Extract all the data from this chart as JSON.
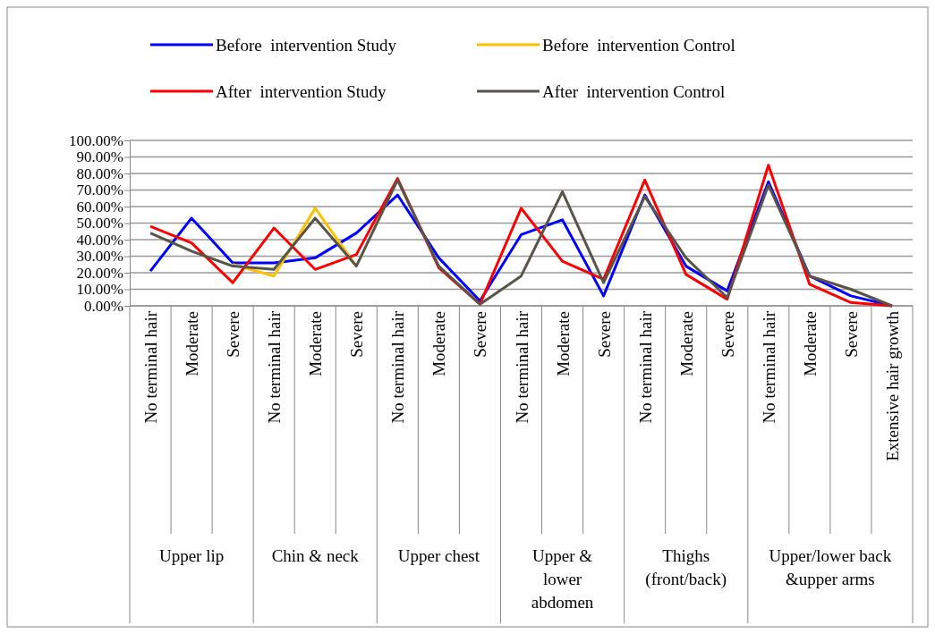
{
  "chart_data": {
    "type": "line",
    "categories": [
      "No terminal hair",
      "Moderate",
      "Severe",
      "No terminal hair",
      "Moderate",
      "Severe",
      "No terminal hair",
      "Moderate",
      "Severe",
      "No terminal hair",
      "Moderate",
      "Severe",
      "No terminal hair",
      "Moderate",
      "Severe",
      "No terminal hair",
      "Moderate",
      "Severe",
      "Extensive hair growth"
    ],
    "series": [
      {
        "name": "Before  intervention Study",
        "color": "#0000ff",
        "values": [
          21,
          53,
          26,
          26,
          29,
          44,
          67,
          29,
          3,
          43,
          52,
          6,
          67,
          24,
          9,
          75,
          18,
          6,
          0
        ]
      },
      {
        "name": "Before  intervention Control",
        "color": "#ffc000",
        "values": [
          null,
          null,
          25,
          18,
          59,
          24,
          null,
          null,
          null,
          null,
          null,
          null,
          null,
          null,
          null,
          null,
          null,
          null,
          null
        ]
      },
      {
        "name": "After  intervention Study",
        "color": "#ff0000",
        "values": [
          48,
          38,
          14,
          47,
          22,
          31,
          77,
          23,
          1,
          59,
          27,
          16,
          76,
          19,
          4,
          85,
          13,
          2,
          0
        ]
      },
      {
        "name": "After  intervention Control",
        "color": "#595448",
        "values": [
          44,
          33,
          24,
          22,
          53,
          24,
          76,
          24,
          1,
          18,
          69,
          14,
          66,
          29,
          5,
          73,
          18,
          10,
          0
        ]
      }
    ],
    "ylim": [
      0,
      100
    ],
    "yticks": [
      {
        "value": 0,
        "label": "0.00%"
      },
      {
        "value": 10,
        "label": "10.00%"
      },
      {
        "value": 20,
        "label": "20.00%"
      },
      {
        "value": 30,
        "label": "30.00%"
      },
      {
        "value": 40,
        "label": "40.00%"
      },
      {
        "value": 50,
        "label": "50.00%"
      },
      {
        "value": 60,
        "label": "60.00%"
      },
      {
        "value": 70,
        "label": "70.00%"
      },
      {
        "value": 80,
        "label": "80.00%"
      },
      {
        "value": 90,
        "label": "90.00%"
      },
      {
        "value": 100,
        "label": "100.00%"
      }
    ],
    "grid": "y",
    "legend": "top",
    "marker": "none",
    "line_style": "solid",
    "annotations": [
      "Upper lip",
      "Chin & neck",
      "Upper chest",
      "Upper &\nlower\nabdomen",
      "Thighs\n(front/back)",
      "Upper/lower back\n&upper arms"
    ]
  }
}
